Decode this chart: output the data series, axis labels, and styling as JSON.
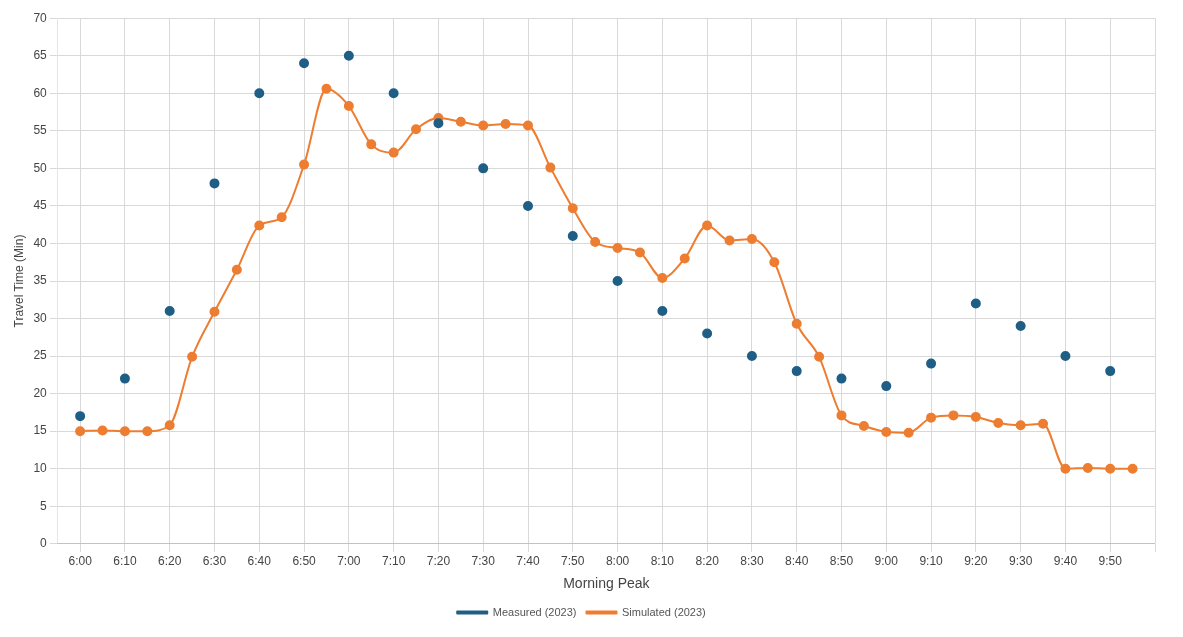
{
  "chart_data": {
    "type": "line",
    "xlabel": "Morning Peak",
    "ylabel": "Travel Time (Min)",
    "xlim": [
      5.9167,
      10
    ],
    "xticks": [
      {
        "value": 6,
        "label": "6:00"
      },
      {
        "value": 6.1667,
        "label": "6:10"
      },
      {
        "value": 6.3333,
        "label": "6:20"
      },
      {
        "value": 6.5,
        "label": "6:30"
      },
      {
        "value": 6.6667,
        "label": "6:40"
      },
      {
        "value": 6.8333,
        "label": "6:50"
      },
      {
        "value": 7,
        "label": "7:00"
      },
      {
        "value": 7.1667,
        "label": "7:10"
      },
      {
        "value": 7.3333,
        "label": "7:20"
      },
      {
        "value": 7.5,
        "label": "7:30"
      },
      {
        "value": 7.6667,
        "label": "7:40"
      },
      {
        "value": 7.8333,
        "label": "7:50"
      },
      {
        "value": 8,
        "label": "8:00"
      },
      {
        "value": 8.1667,
        "label": "8:10"
      },
      {
        "value": 8.3333,
        "label": "8:20"
      },
      {
        "value": 8.5,
        "label": "8:30"
      },
      {
        "value": 8.6667,
        "label": "8:40"
      },
      {
        "value": 8.8333,
        "label": "8:50"
      },
      {
        "value": 9,
        "label": "9:00"
      },
      {
        "value": 9.1667,
        "label": "9:10"
      },
      {
        "value": 9.3333,
        "label": "9:20"
      },
      {
        "value": 9.5,
        "label": "9:30"
      },
      {
        "value": 9.6667,
        "label": "9:40"
      },
      {
        "value": 9.8333,
        "label": "9:50"
      },
      {
        "value": 10,
        "label": null
      }
    ],
    "ylim": [
      0,
      70
    ],
    "yticks": [
      0,
      5,
      10,
      15,
      20,
      25,
      30,
      35,
      40,
      45,
      50,
      55,
      60,
      65,
      70
    ],
    "grid": true,
    "legend": "bottom",
    "marker": "circle",
    "series": [
      {
        "name": "Measured (2023)",
        "type": "scatter",
        "color": "#1f5f86",
        "x": [
          6,
          6.1667,
          6.3333,
          6.5,
          6.6667,
          6.8333,
          7,
          7.1667,
          7.3333,
          7.5,
          7.6667,
          7.8333,
          8,
          8.1667,
          8.3333,
          8.5,
          8.6667,
          8.8333,
          9,
          9.1667,
          9.3333,
          9.5,
          9.6667,
          9.8333
        ],
        "values": [
          17,
          22,
          31,
          48,
          60,
          64,
          65,
          60,
          56,
          50,
          45,
          41,
          35,
          31,
          28,
          25,
          23,
          22,
          21,
          24,
          32,
          29,
          25,
          23
        ]
      },
      {
        "name": "Simulated (2023)",
        "color": "#ed7d31",
        "x": [
          6,
          6.0833,
          6.1667,
          6.25,
          6.3333,
          6.4167,
          6.5,
          6.5833,
          6.6667,
          6.75,
          6.8333,
          6.9167,
          7,
          7.0833,
          7.1667,
          7.25,
          7.3333,
          7.4167,
          7.5,
          7.5833,
          7.6667,
          7.75,
          7.8333,
          7.9167,
          8,
          8.0833,
          8.1667,
          8.25,
          8.3333,
          8.4167,
          8.5,
          8.5833,
          8.6667,
          8.75,
          8.8333,
          8.9167,
          9,
          9.0833,
          9.1667,
          9.25,
          9.3333,
          9.4167,
          9.5,
          9.5833,
          9.6667,
          9.75,
          9.8333,
          9.9167
        ],
        "values": [
          15,
          15.1,
          15,
          15,
          15.8,
          24.9,
          30.9,
          36.5,
          42.4,
          43.5,
          50.5,
          60.6,
          58.3,
          53.2,
          52.1,
          55.2,
          56.7,
          56.2,
          55.7,
          55.9,
          55.7,
          50.1,
          44.7,
          40.2,
          39.4,
          38.8,
          35.4,
          38,
          42.4,
          40.4,
          40.6,
          37.5,
          29.3,
          24.9,
          17.1,
          15.7,
          14.9,
          14.8,
          16.8,
          17.1,
          16.9,
          16.1,
          15.8,
          16,
          10,
          10.1,
          10,
          10
        ]
      }
    ]
  }
}
